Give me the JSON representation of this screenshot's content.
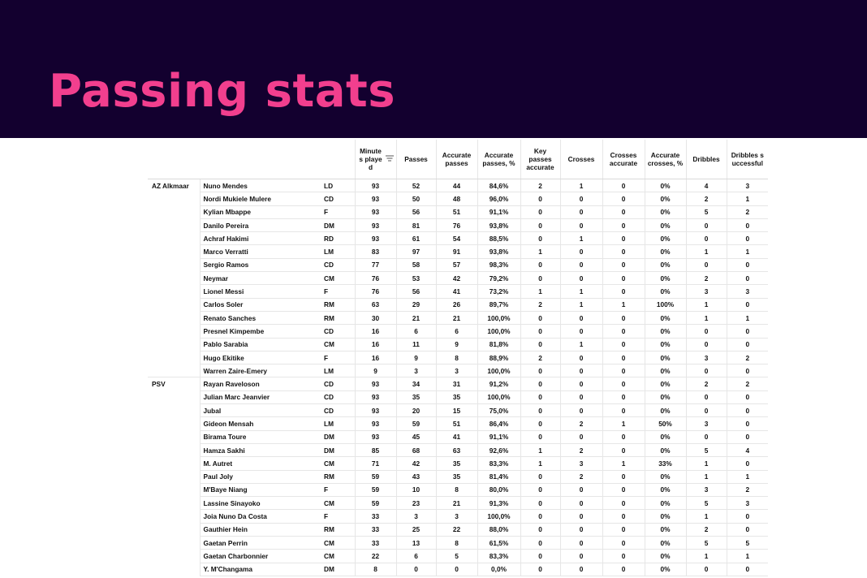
{
  "title": "Passing stats",
  "colors": {
    "header_bg": "#13002f",
    "title": "#f23f8e"
  },
  "columns": {
    "minutes": "Minute s playe d",
    "passes": "Passes",
    "accurate_passes": "Accurate passes",
    "accurate_passes_pct": "Accurate passes, %",
    "key_passes": "Key passes accurate",
    "crosses": "Crosses",
    "crosses_accurate": "Crosses accurate",
    "accurate_crosses_pct": "Accurate crosses, %",
    "dribbles": "Dribbles",
    "dribbles_successful": "Dribbles s uccessful"
  },
  "sort_icon": "sort-icon",
  "rows": [
    {
      "team": "AZ Alkmaar",
      "player": "Nuno Mendes",
      "pos": "LD",
      "min": "93",
      "passes": "52",
      "acc": "44",
      "acc_pct": "84,6%",
      "key": "2",
      "crosses": "1",
      "cr_acc": "0",
      "cr_pct": "0%",
      "drb": "4",
      "drb_succ": "3"
    },
    {
      "team": "",
      "player": "Nordi Mukiele Mulere",
      "pos": "CD",
      "min": "93",
      "passes": "50",
      "acc": "48",
      "acc_pct": "96,0%",
      "key": "0",
      "crosses": "0",
      "cr_acc": "0",
      "cr_pct": "0%",
      "drb": "2",
      "drb_succ": "1"
    },
    {
      "team": "",
      "player": "Kylian Mbappe",
      "pos": "F",
      "min": "93",
      "passes": "56",
      "acc": "51",
      "acc_pct": "91,1%",
      "key": "0",
      "crosses": "0",
      "cr_acc": "0",
      "cr_pct": "0%",
      "drb": "5",
      "drb_succ": "2"
    },
    {
      "team": "",
      "player": "Danilo Pereira",
      "pos": "DM",
      "min": "93",
      "passes": "81",
      "acc": "76",
      "acc_pct": "93,8%",
      "key": "0",
      "crosses": "0",
      "cr_acc": "0",
      "cr_pct": "0%",
      "drb": "0",
      "drb_succ": "0"
    },
    {
      "team": "",
      "player": "Achraf Hakimi",
      "pos": "RD",
      "min": "93",
      "passes": "61",
      "acc": "54",
      "acc_pct": "88,5%",
      "key": "0",
      "crosses": "1",
      "cr_acc": "0",
      "cr_pct": "0%",
      "drb": "0",
      "drb_succ": "0"
    },
    {
      "team": "",
      "player": "Marco Verratti",
      "pos": "LM",
      "min": "83",
      "passes": "97",
      "acc": "91",
      "acc_pct": "93,8%",
      "key": "1",
      "crosses": "0",
      "cr_acc": "0",
      "cr_pct": "0%",
      "drb": "1",
      "drb_succ": "1"
    },
    {
      "team": "",
      "player": "Sergio Ramos",
      "pos": "CD",
      "min": "77",
      "passes": "58",
      "acc": "57",
      "acc_pct": "98,3%",
      "key": "0",
      "crosses": "0",
      "cr_acc": "0",
      "cr_pct": "0%",
      "drb": "0",
      "drb_succ": "0"
    },
    {
      "team": "",
      "player": "Neymar",
      "pos": "CM",
      "min": "76",
      "passes": "53",
      "acc": "42",
      "acc_pct": "79,2%",
      "key": "0",
      "crosses": "0",
      "cr_acc": "0",
      "cr_pct": "0%",
      "drb": "2",
      "drb_succ": "0"
    },
    {
      "team": "",
      "player": "Lionel Messi",
      "pos": "F",
      "min": "76",
      "passes": "56",
      "acc": "41",
      "acc_pct": "73,2%",
      "key": "1",
      "crosses": "1",
      "cr_acc": "0",
      "cr_pct": "0%",
      "drb": "3",
      "drb_succ": "3"
    },
    {
      "team": "",
      "player": "Carlos Soler",
      "pos": "RM",
      "min": "63",
      "passes": "29",
      "acc": "26",
      "acc_pct": "89,7%",
      "key": "2",
      "crosses": "1",
      "cr_acc": "1",
      "cr_pct": "100%",
      "drb": "1",
      "drb_succ": "0"
    },
    {
      "team": "",
      "player": "Renato Sanches",
      "pos": "RM",
      "min": "30",
      "passes": "21",
      "acc": "21",
      "acc_pct": "100,0%",
      "key": "0",
      "crosses": "0",
      "cr_acc": "0",
      "cr_pct": "0%",
      "drb": "1",
      "drb_succ": "1"
    },
    {
      "team": "",
      "player": "Presnel Kimpembe",
      "pos": "CD",
      "min": "16",
      "passes": "6",
      "acc": "6",
      "acc_pct": "100,0%",
      "key": "0",
      "crosses": "0",
      "cr_acc": "0",
      "cr_pct": "0%",
      "drb": "0",
      "drb_succ": "0"
    },
    {
      "team": "",
      "player": "Pablo Sarabia",
      "pos": "CM",
      "min": "16",
      "passes": "11",
      "acc": "9",
      "acc_pct": "81,8%",
      "key": "0",
      "crosses": "1",
      "cr_acc": "0",
      "cr_pct": "0%",
      "drb": "0",
      "drb_succ": "0"
    },
    {
      "team": "",
      "player": "Hugo Ekitike",
      "pos": "F",
      "min": "16",
      "passes": "9",
      "acc": "8",
      "acc_pct": "88,9%",
      "key": "2",
      "crosses": "0",
      "cr_acc": "0",
      "cr_pct": "0%",
      "drb": "3",
      "drb_succ": "2"
    },
    {
      "team": "",
      "player": "Warren Zaire-Emery",
      "pos": "LM",
      "min": "9",
      "passes": "3",
      "acc": "3",
      "acc_pct": "100,0%",
      "key": "0",
      "crosses": "0",
      "cr_acc": "0",
      "cr_pct": "0%",
      "drb": "0",
      "drb_succ": "0"
    },
    {
      "team": "PSV",
      "player": "Rayan Raveloson",
      "pos": "CD",
      "min": "93",
      "passes": "34",
      "acc": "31",
      "acc_pct": "91,2%",
      "key": "0",
      "crosses": "0",
      "cr_acc": "0",
      "cr_pct": "0%",
      "drb": "2",
      "drb_succ": "2"
    },
    {
      "team": "",
      "player": "Julian Marc Jeanvier",
      "pos": "CD",
      "min": "93",
      "passes": "35",
      "acc": "35",
      "acc_pct": "100,0%",
      "key": "0",
      "crosses": "0",
      "cr_acc": "0",
      "cr_pct": "0%",
      "drb": "0",
      "drb_succ": "0"
    },
    {
      "team": "",
      "player": "Jubal",
      "pos": "CD",
      "min": "93",
      "passes": "20",
      "acc": "15",
      "acc_pct": "75,0%",
      "key": "0",
      "crosses": "0",
      "cr_acc": "0",
      "cr_pct": "0%",
      "drb": "0",
      "drb_succ": "0"
    },
    {
      "team": "",
      "player": "Gideon Mensah",
      "pos": "LM",
      "min": "93",
      "passes": "59",
      "acc": "51",
      "acc_pct": "86,4%",
      "key": "0",
      "crosses": "2",
      "cr_acc": "1",
      "cr_pct": "50%",
      "drb": "3",
      "drb_succ": "0"
    },
    {
      "team": "",
      "player": "Birama Toure",
      "pos": "DM",
      "min": "93",
      "passes": "45",
      "acc": "41",
      "acc_pct": "91,1%",
      "key": "0",
      "crosses": "0",
      "cr_acc": "0",
      "cr_pct": "0%",
      "drb": "0",
      "drb_succ": "0"
    },
    {
      "team": "",
      "player": "Hamza Sakhi",
      "pos": "DM",
      "min": "85",
      "passes": "68",
      "acc": "63",
      "acc_pct": "92,6%",
      "key": "1",
      "crosses": "2",
      "cr_acc": "0",
      "cr_pct": "0%",
      "drb": "5",
      "drb_succ": "4"
    },
    {
      "team": "",
      "player": "M. Autret",
      "pos": "CM",
      "min": "71",
      "passes": "42",
      "acc": "35",
      "acc_pct": "83,3%",
      "key": "1",
      "crosses": "3",
      "cr_acc": "1",
      "cr_pct": "33%",
      "drb": "1",
      "drb_succ": "0"
    },
    {
      "team": "",
      "player": "Paul Joly",
      "pos": "RM",
      "min": "59",
      "passes": "43",
      "acc": "35",
      "acc_pct": "81,4%",
      "key": "0",
      "crosses": "2",
      "cr_acc": "0",
      "cr_pct": "0%",
      "drb": "1",
      "drb_succ": "1"
    },
    {
      "team": "",
      "player": "M'Baye Niang",
      "pos": "F",
      "min": "59",
      "passes": "10",
      "acc": "8",
      "acc_pct": "80,0%",
      "key": "0",
      "crosses": "0",
      "cr_acc": "0",
      "cr_pct": "0%",
      "drb": "3",
      "drb_succ": "2"
    },
    {
      "team": "",
      "player": "Lassine Sinayoko",
      "pos": "CM",
      "min": "59",
      "passes": "23",
      "acc": "21",
      "acc_pct": "91,3%",
      "key": "0",
      "crosses": "0",
      "cr_acc": "0",
      "cr_pct": "0%",
      "drb": "5",
      "drb_succ": "3"
    },
    {
      "team": "",
      "player": "Joia Nuno Da Costa",
      "pos": "F",
      "min": "33",
      "passes": "3",
      "acc": "3",
      "acc_pct": "100,0%",
      "key": "0",
      "crosses": "0",
      "cr_acc": "0",
      "cr_pct": "0%",
      "drb": "1",
      "drb_succ": "0"
    },
    {
      "team": "",
      "player": "Gauthier Hein",
      "pos": "RM",
      "min": "33",
      "passes": "25",
      "acc": "22",
      "acc_pct": "88,0%",
      "key": "0",
      "crosses": "0",
      "cr_acc": "0",
      "cr_pct": "0%",
      "drb": "2",
      "drb_succ": "0"
    },
    {
      "team": "",
      "player": "Gaetan Perrin",
      "pos": "CM",
      "min": "33",
      "passes": "13",
      "acc": "8",
      "acc_pct": "61,5%",
      "key": "0",
      "crosses": "0",
      "cr_acc": "0",
      "cr_pct": "0%",
      "drb": "5",
      "drb_succ": "5"
    },
    {
      "team": "",
      "player": "Gaetan Charbonnier",
      "pos": "CM",
      "min": "22",
      "passes": "6",
      "acc": "5",
      "acc_pct": "83,3%",
      "key": "0",
      "crosses": "0",
      "cr_acc": "0",
      "cr_pct": "0%",
      "drb": "1",
      "drb_succ": "1"
    },
    {
      "team": "",
      "player": "Y. M'Changama",
      "pos": "DM",
      "min": "8",
      "passes": "0",
      "acc": "0",
      "acc_pct": "0,0%",
      "key": "0",
      "crosses": "0",
      "cr_acc": "0",
      "cr_pct": "0%",
      "drb": "0",
      "drb_succ": "0"
    }
  ]
}
